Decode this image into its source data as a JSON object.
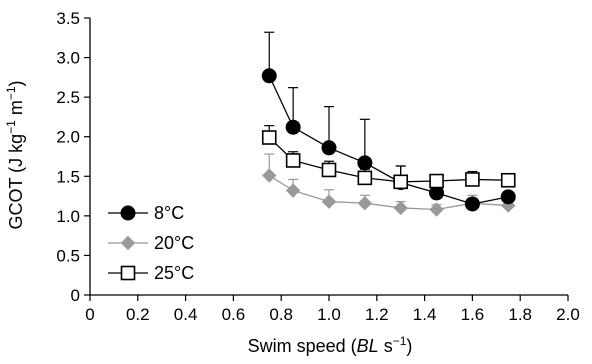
{
  "chart_data": {
    "type": "line",
    "title": "",
    "xlabel": {
      "prefix": "Swim speed (",
      "italic": "BL",
      "unit": " s",
      "sup": "−1",
      "suffix": ")"
    },
    "ylabel": {
      "prefix": "GCOT (J kg",
      "sup1": "−1",
      "mid": " m",
      "sup2": "−1",
      "suffix": ")"
    },
    "xlim": [
      0,
      2.0
    ],
    "ylim": [
      0,
      3.5
    ],
    "x_ticks": [
      "0",
      "0.2",
      "0.4",
      "0.6",
      "0.8",
      "1.0",
      "1.2",
      "1.4",
      "1.6",
      "1.8",
      "2.0"
    ],
    "y_ticks": [
      "0",
      "0.5",
      "1.0",
      "1.5",
      "2.0",
      "2.5",
      "3.0",
      "3.5"
    ],
    "grid": false,
    "legend_position": "bottom-left",
    "series": [
      {
        "name": "8°C",
        "marker": "circle-filled",
        "color": "#000000",
        "x": [
          0.75,
          0.85,
          1.0,
          1.15,
          1.3,
          1.45,
          1.6,
          1.75
        ],
        "y": [
          2.77,
          2.12,
          1.86,
          1.67,
          1.42,
          1.29,
          1.15,
          1.24
        ],
        "err": [
          0.55,
          0.5,
          0.52,
          0.55,
          0.21,
          0.15,
          0.07,
          0.05
        ]
      },
      {
        "name": "20°C",
        "marker": "diamond-filled",
        "color": "#999999",
        "x": [
          0.75,
          0.85,
          1.0,
          1.15,
          1.3,
          1.45,
          1.6,
          1.75
        ],
        "y": [
          1.51,
          1.32,
          1.18,
          1.16,
          1.1,
          1.08,
          1.16,
          1.13
        ],
        "err": [
          0.27,
          0.14,
          0.15,
          0.1,
          0.08,
          0.06,
          0.1,
          0.05
        ]
      },
      {
        "name": "25°C",
        "marker": "square-open",
        "color": "#000000",
        "x": [
          0.75,
          0.85,
          1.0,
          1.15,
          1.3,
          1.45,
          1.6,
          1.75
        ],
        "y": [
          1.99,
          1.7,
          1.58,
          1.48,
          1.43,
          1.44,
          1.46,
          1.45
        ],
        "err": [
          0.15,
          0.11,
          0.11,
          0.11,
          0.2,
          0.08,
          0.1,
          0.06
        ]
      }
    ]
  }
}
